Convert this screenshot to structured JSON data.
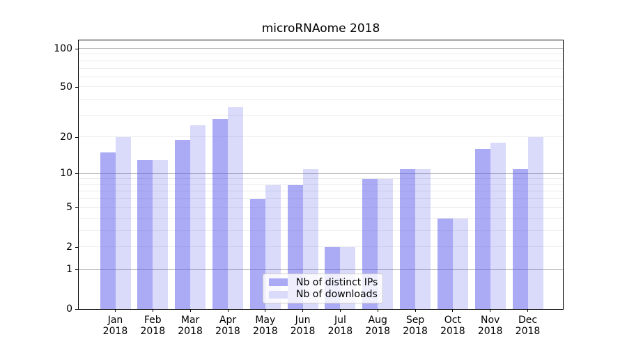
{
  "title": "microRNAome 2018",
  "colors": {
    "bar_distinct_ips": "#aaaaf5",
    "bar_downloads": "#dadafa",
    "grid_major": "#b3b3b3",
    "grid_minor": "#ebebeb",
    "axis": "#000000"
  },
  "legend": {
    "items": [
      {
        "label": "Nb of distinct IPs",
        "swatch": "#aaaaf5"
      },
      {
        "label": "Nb of downloads",
        "swatch": "#dadafa"
      }
    ]
  },
  "x_axis": {
    "months": [
      "Jan",
      "Feb",
      "Mar",
      "Apr",
      "May",
      "Jun",
      "Jul",
      "Aug",
      "Sep",
      "Oct",
      "Nov",
      "Dec"
    ],
    "year": "2018"
  },
  "y_axis": {
    "tick_labels": [
      "100",
      "50",
      "20",
      "10",
      "5",
      "2",
      "1",
      "0"
    ],
    "tick_values": [
      100,
      50,
      20,
      10,
      5,
      2,
      1,
      0
    ],
    "major_grid_values": [
      1,
      10,
      100
    ],
    "minor_grid_values": [
      2,
      3,
      4,
      5,
      6,
      7,
      8,
      9,
      20,
      30,
      40,
      50,
      60,
      70,
      80,
      90
    ]
  },
  "chart_data": {
    "type": "bar",
    "title": "microRNAome 2018",
    "categories": [
      "Jan 2018",
      "Feb 2018",
      "Mar 2018",
      "Apr 2018",
      "May 2018",
      "Jun 2018",
      "Jul 2018",
      "Aug 2018",
      "Sep 2018",
      "Oct 2018",
      "Nov 2018",
      "Dec 2018"
    ],
    "series": [
      {
        "name": "Nb of distinct IPs",
        "values": [
          15,
          13,
          19,
          28,
          6,
          8,
          2,
          9,
          11,
          4,
          16,
          11
        ],
        "color": "#aaaaf5",
        "rgba": "rgba(85,85,235,0.5)"
      },
      {
        "name": "Nb of downloads",
        "values": [
          20,
          13,
          25,
          35,
          8,
          11,
          2,
          9,
          11,
          4,
          18,
          20
        ],
        "color": "#dadafa",
        "rgba": "rgba(85,85,235,0.22)"
      }
    ],
    "xlabel": "",
    "ylabel": "",
    "yscale": "log1p",
    "yticks": [
      0,
      1,
      2,
      5,
      10,
      20,
      50,
      100
    ],
    "ylim": [
      0,
      116
    ],
    "grid": "horizontal, log minor gridlines",
    "legend_position": "lower-center"
  }
}
